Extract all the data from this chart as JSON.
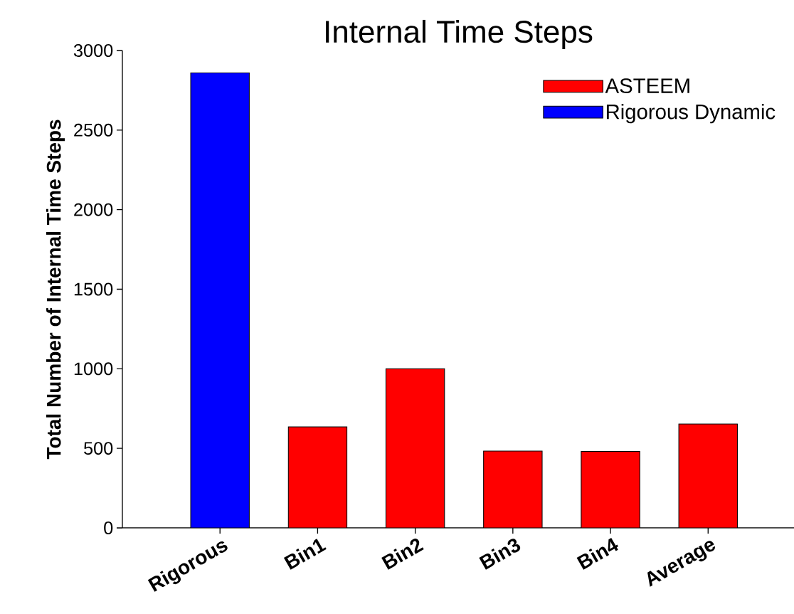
{
  "chart_data": {
    "type": "bar",
    "title": "Internal Time Steps",
    "ylabel": "Total Number of Internal Time Steps",
    "categories": [
      "Rigorous",
      "Bin1",
      "Bin2",
      "Bin3",
      "Bin4",
      "Average"
    ],
    "series": [
      {
        "name": "ASTEEM",
        "color": "#ff0000",
        "values": [
          null,
          635,
          1000,
          483,
          481,
          653
        ]
      },
      {
        "name": "Rigorous Dynamic",
        "color": "#0000ff",
        "values": [
          2860,
          null,
          null,
          null,
          null,
          null
        ]
      }
    ],
    "ylim": [
      0,
      3000
    ],
    "yticks": [
      0,
      500,
      1000,
      1500,
      2000,
      2500,
      3000
    ],
    "grid": false,
    "legend": "top right"
  }
}
